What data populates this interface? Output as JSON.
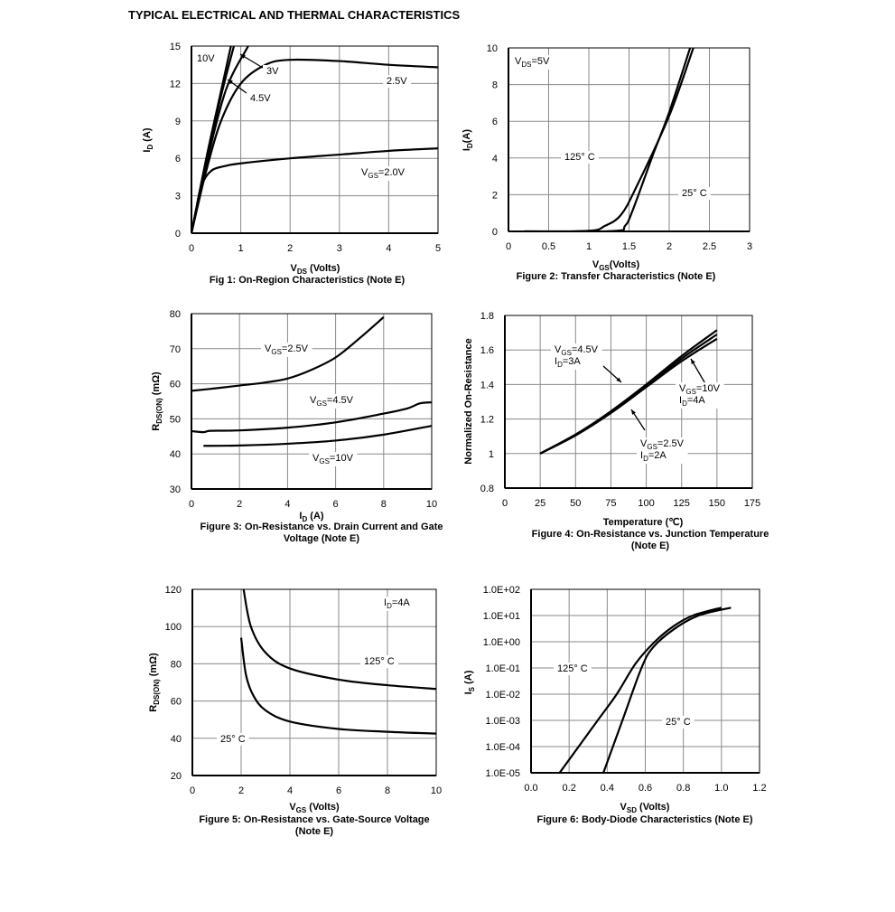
{
  "page_title": "TYPICAL ELECTRICAL AND THERMAL CHARACTERISTICS",
  "chart_data": [
    {
      "type": "line",
      "title": "Fig 1: On-Region Characteristics (Note E)",
      "xlabel": "V{DS} (Volts)",
      "ylabel": "I{D} (A)",
      "xlim": [
        0,
        5
      ],
      "ylim": [
        0,
        15
      ],
      "yscale": "linear",
      "grid": true,
      "xticks": [
        0,
        1,
        2,
        3,
        4,
        5
      ],
      "xtick_labels": [
        "0",
        "1",
        "2",
        "3",
        "4",
        "5"
      ],
      "yticks": [
        0,
        3,
        6,
        9,
        12,
        15
      ],
      "ytick_labels": [
        "0",
        "3",
        "6",
        "9",
        "12",
        "15"
      ],
      "series": [
        {
          "name": "10V",
          "points": [
            [
              0,
              0
            ],
            [
              0.3,
              6
            ],
            [
              0.6,
              11.4
            ],
            [
              0.8,
              15
            ]
          ]
        },
        {
          "name": "4.5V",
          "points": [
            [
              0,
              0
            ],
            [
              0.3,
              5.8
            ],
            [
              0.6,
              11
            ],
            [
              0.86,
              15
            ]
          ]
        },
        {
          "name": "3V",
          "points": [
            [
              0,
              0
            ],
            [
              0.3,
              5.5
            ],
            [
              0.7,
              11.5
            ],
            [
              1.15,
              15
            ]
          ]
        },
        {
          "name": "2.5V",
          "points": [
            [
              0,
              0
            ],
            [
              0.3,
              5
            ],
            [
              0.6,
              9
            ],
            [
              1,
              12
            ],
            [
              1.5,
              13.5
            ],
            [
              2,
              13.9
            ],
            [
              3,
              13.8
            ],
            [
              4,
              13.5
            ],
            [
              5,
              13.3
            ]
          ]
        },
        {
          "name": "VGS=2.0V",
          "points": [
            [
              0,
              0
            ],
            [
              0.1,
              2
            ],
            [
              0.2,
              3.8
            ],
            [
              0.4,
              5
            ],
            [
              0.7,
              5.4
            ],
            [
              1,
              5.6
            ],
            [
              2,
              6
            ],
            [
              3,
              6.3
            ],
            [
              4,
              6.6
            ],
            [
              5,
              6.8
            ]
          ]
        }
      ],
      "annotations": [
        "10V",
        "3V",
        "4.5V",
        "2.5V",
        "V{GS}=2.0V"
      ]
    },
    {
      "type": "line",
      "title": "Figure 2: Transfer Characteristics (Note E)",
      "xlabel": "V{GS}(Volts)",
      "ylabel": "I{D}(A)",
      "xlim": [
        0,
        3
      ],
      "ylim": [
        0,
        10
      ],
      "yscale": "linear",
      "grid": true,
      "xticks": [
        0,
        0.5,
        1,
        1.5,
        2,
        2.5,
        3
      ],
      "xtick_labels": [
        "0",
        "0.5",
        "1",
        "1.5",
        "2",
        "2.5",
        "3"
      ],
      "yticks": [
        0,
        2,
        4,
        6,
        8,
        10
      ],
      "ytick_labels": [
        "0",
        "2",
        "4",
        "6",
        "8",
        "10"
      ],
      "series": [
        {
          "name": "125° C",
          "points": [
            [
              0.2,
              0
            ],
            [
              1,
              0.03
            ],
            [
              1.2,
              0.3
            ],
            [
              1.4,
              0.9
            ],
            [
              1.6,
              2.5
            ],
            [
              2,
              6.3
            ],
            [
              2.3,
              10
            ]
          ]
        },
        {
          "name": "25° C",
          "points": [
            [
              0.2,
              0
            ],
            [
              1.3,
              0.02
            ],
            [
              1.45,
              0.3
            ],
            [
              1.55,
              1.2
            ],
            [
              1.8,
              4.2
            ],
            [
              2,
              6.5
            ],
            [
              2.26,
              10
            ]
          ]
        }
      ],
      "annotations": [
        "V{DS}=5V",
        "125° C",
        "25° C"
      ]
    },
    {
      "type": "line",
      "title": "Figure 3: On-Resistance vs. Drain Current and Gate\nVoltage (Note E)",
      "xlabel": "I{D} (A)",
      "ylabel": "R{DS(ON)} (mΩ)",
      "xlim": [
        0,
        10
      ],
      "ylim": [
        30,
        80
      ],
      "yscale": "linear",
      "grid": true,
      "xticks": [
        0,
        2,
        4,
        6,
        8,
        10
      ],
      "xtick_labels": [
        "0",
        "2",
        "4",
        "6",
        "8",
        "10"
      ],
      "yticks": [
        30,
        40,
        50,
        60,
        70,
        80
      ],
      "ytick_labels": [
        "30",
        "40",
        "50",
        "60",
        "70",
        "80"
      ],
      "series": [
        {
          "name": "VGS=2.5V",
          "points": [
            [
              0,
              58
            ],
            [
              1,
              58.7
            ],
            [
              2,
              59.5
            ],
            [
              3,
              60.3
            ],
            [
              4,
              61.5
            ],
            [
              5,
              64
            ],
            [
              6,
              67.5
            ],
            [
              7,
              73
            ],
            [
              8,
              79
            ]
          ]
        },
        {
          "name": "VGS=4.5V",
          "points": [
            [
              0,
              46.5
            ],
            [
              0.5,
              46.2
            ],
            [
              0.8,
              46.6
            ],
            [
              2,
              46.7
            ],
            [
              4,
              47.5
            ],
            [
              6,
              49
            ],
            [
              8,
              51.5
            ],
            [
              9,
              53
            ],
            [
              9.5,
              54.4
            ],
            [
              10,
              54.7
            ]
          ]
        },
        {
          "name": "VGS=10V",
          "points": [
            [
              0.5,
              42.3
            ],
            [
              2,
              42.4
            ],
            [
              4,
              42.9
            ],
            [
              6,
              43.8
            ],
            [
              8,
              45.5
            ],
            [
              10,
              48
            ]
          ]
        }
      ],
      "annotations": [
        "V{GS}=2.5V",
        "V{GS}=4.5V",
        "V{GS}=10V"
      ]
    },
    {
      "type": "line",
      "title": "Figure 4: On-Resistance vs. Junction Temperature\n(Note E)",
      "xlabel": "Temperature (℃)",
      "ylabel": "Normalized On-Resistance",
      "xlim": [
        0,
        175
      ],
      "ylim": [
        0.8,
        1.8
      ],
      "yscale": "linear",
      "grid": true,
      "xticks": [
        0,
        25,
        50,
        75,
        100,
        125,
        150,
        175
      ],
      "xtick_labels": [
        "0",
        "25",
        "50",
        "75",
        "100",
        "125",
        "150",
        "175"
      ],
      "yticks": [
        0.8,
        1,
        1.2,
        1.4,
        1.6,
        1.8
      ],
      "ytick_labels": [
        "0.8",
        "1",
        "1.2",
        "1.4",
        "1.6",
        "1.8"
      ],
      "series": [
        {
          "name": "VGS=4.5V, ID=3A",
          "points": [
            [
              25,
              1
            ],
            [
              50,
              1.11
            ],
            [
              75,
              1.245
            ],
            [
              100,
              1.4
            ],
            [
              125,
              1.565
            ],
            [
              150,
              1.715
            ]
          ]
        },
        {
          "name": "VGS=10V, ID=4A",
          "points": [
            [
              25,
              1
            ],
            [
              50,
              1.11
            ],
            [
              75,
              1.24
            ],
            [
              100,
              1.39
            ],
            [
              125,
              1.55
            ],
            [
              150,
              1.69
            ]
          ]
        },
        {
          "name": "VGS=2.5V, ID=2A",
          "points": [
            [
              25,
              1
            ],
            [
              50,
              1.105
            ],
            [
              75,
              1.235
            ],
            [
              100,
              1.385
            ],
            [
              125,
              1.535
            ],
            [
              150,
              1.665
            ]
          ]
        }
      ],
      "annotations": [
        "V{GS}=4.5V\nI{D}=3A",
        "V{GS}=10V\nI{D}=4A",
        "V{GS}=2.5V\nI{D}=2A"
      ]
    },
    {
      "type": "line",
      "title": "Figure 5: On-Resistance vs. Gate-Source Voltage\n(Note E)",
      "xlabel": "V{GS} (Volts)",
      "ylabel": "R{DS(ON)} (mΩ)",
      "xlim": [
        0,
        10
      ],
      "ylim": [
        20,
        120
      ],
      "yscale": "linear",
      "grid": true,
      "xticks": [
        0,
        2,
        4,
        6,
        8,
        10
      ],
      "xtick_labels": [
        "0",
        "2",
        "4",
        "6",
        "8",
        "10"
      ],
      "yticks": [
        20,
        40,
        60,
        80,
        100,
        120
      ],
      "ytick_labels": [
        "20",
        "40",
        "60",
        "80",
        "100",
        "120"
      ],
      "series": [
        {
          "name": "125° C",
          "points": [
            [
              2.1,
              120
            ],
            [
              2.4,
              100
            ],
            [
              3,
              86
            ],
            [
              4,
              77.5
            ],
            [
              6,
              71.5
            ],
            [
              8,
              68.5
            ],
            [
              10,
              66.5
            ]
          ]
        },
        {
          "name": "25° C",
          "points": [
            [
              2,
              94
            ],
            [
              2.2,
              74
            ],
            [
              2.5,
              63
            ],
            [
              3,
              55
            ],
            [
              4,
              49
            ],
            [
              6,
              45
            ],
            [
              8,
              43.5
            ],
            [
              10,
              42.5
            ]
          ]
        }
      ],
      "annotations": [
        "I{D}=4A",
        "125° C",
        "25° C"
      ]
    },
    {
      "type": "line",
      "title": "Figure 6: Body-Diode Characteristics (Note E)",
      "xlabel": "V{SD} (Volts)",
      "ylabel": "I{S} (A)",
      "xlim": [
        0,
        1.2
      ],
      "ylim": [
        1e-05,
        100
      ],
      "yscale": "log",
      "grid": true,
      "xticks": [
        0,
        0.2,
        0.4,
        0.6,
        0.8,
        1,
        1.2
      ],
      "xtick_labels": [
        "0.0",
        "0.2",
        "0.4",
        "0.6",
        "0.8",
        "1.0",
        "1.2"
      ],
      "yticks": [
        1e-05,
        0.0001,
        0.001,
        0.01,
        0.1,
        1,
        10,
        100
      ],
      "ytick_labels": [
        "1.0E-05",
        "1.0E-04",
        "1.0E-03",
        "1.0E-02",
        "1.0E-01",
        "1.0E+00",
        "1.0E+01",
        "1.0E+02"
      ],
      "series": [
        {
          "name": "125° C",
          "points": [
            [
              0.15,
              1e-05
            ],
            [
              0.25,
              0.0001
            ],
            [
              0.35,
              0.001
            ],
            [
              0.45,
              0.01
            ],
            [
              0.55,
              0.15
            ],
            [
              0.65,
              1
            ],
            [
              0.75,
              4
            ],
            [
              0.85,
              10
            ],
            [
              1.0,
              20
            ]
          ]
        },
        {
          "name": "25° C",
          "points": [
            [
              0.38,
              1e-05
            ],
            [
              0.48,
              0.001
            ],
            [
              0.58,
              0.1
            ],
            [
              0.64,
              0.6
            ],
            [
              0.75,
              3
            ],
            [
              0.88,
              10
            ],
            [
              1.05,
              20
            ]
          ]
        }
      ],
      "annotations": [
        "125° C",
        "25° C"
      ]
    }
  ]
}
